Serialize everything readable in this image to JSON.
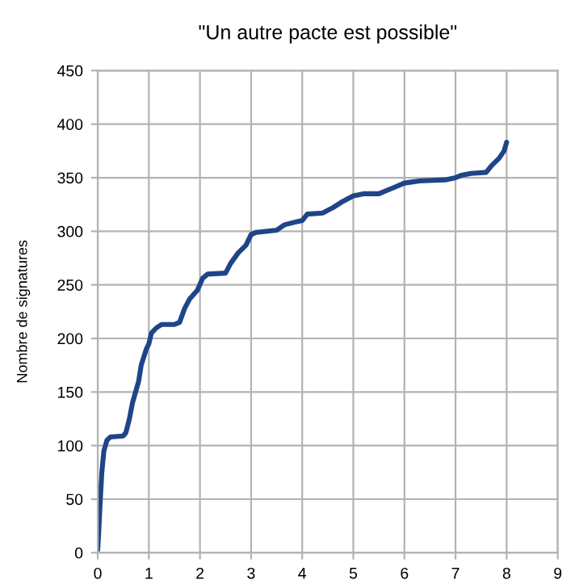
{
  "chart_data": {
    "type": "line",
    "title": "\"Un autre pacte est possible\"",
    "ylabel": "Nombre de signatures",
    "series": [
      {
        "color": "#1f4588",
        "x": [
          0.0,
          0.02,
          0.05,
          0.08,
          0.12,
          0.18,
          0.25,
          0.5,
          0.55,
          0.62,
          0.68,
          0.8,
          0.85,
          0.95,
          1.0,
          1.05,
          1.15,
          1.25,
          1.5,
          1.6,
          1.7,
          1.8,
          1.95,
          2.05,
          2.15,
          2.5,
          2.6,
          2.75,
          2.9,
          3.0,
          3.1,
          3.5,
          3.65,
          3.9,
          4.0,
          4.1,
          4.4,
          4.6,
          4.8,
          5.0,
          5.2,
          5.5,
          5.8,
          6.0,
          6.3,
          6.8,
          7.0,
          7.1,
          7.3,
          7.6,
          7.7,
          7.85,
          7.95,
          8.0
        ],
        "values": [
          3,
          20,
          50,
          75,
          95,
          105,
          108,
          109,
          112,
          125,
          140,
          160,
          175,
          190,
          195,
          205,
          210,
          213,
          213,
          215,
          228,
          237,
          245,
          256,
          260,
          261,
          270,
          280,
          287,
          297,
          299,
          301,
          306,
          309,
          310,
          316,
          317,
          322,
          328,
          333,
          335,
          335,
          341,
          345,
          347,
          348,
          350,
          352,
          354,
          355,
          361,
          368,
          375,
          383
        ]
      }
    ],
    "xlim": [
      0,
      9
    ],
    "xticks": [
      0,
      1,
      2,
      3,
      4,
      5,
      6,
      7,
      8,
      9
    ],
    "ylim": [
      0,
      450
    ],
    "yticks": [
      0,
      50,
      100,
      150,
      200,
      250,
      300,
      350,
      400,
      450
    ],
    "grid": true,
    "marker": "none",
    "line_style": "solid"
  }
}
